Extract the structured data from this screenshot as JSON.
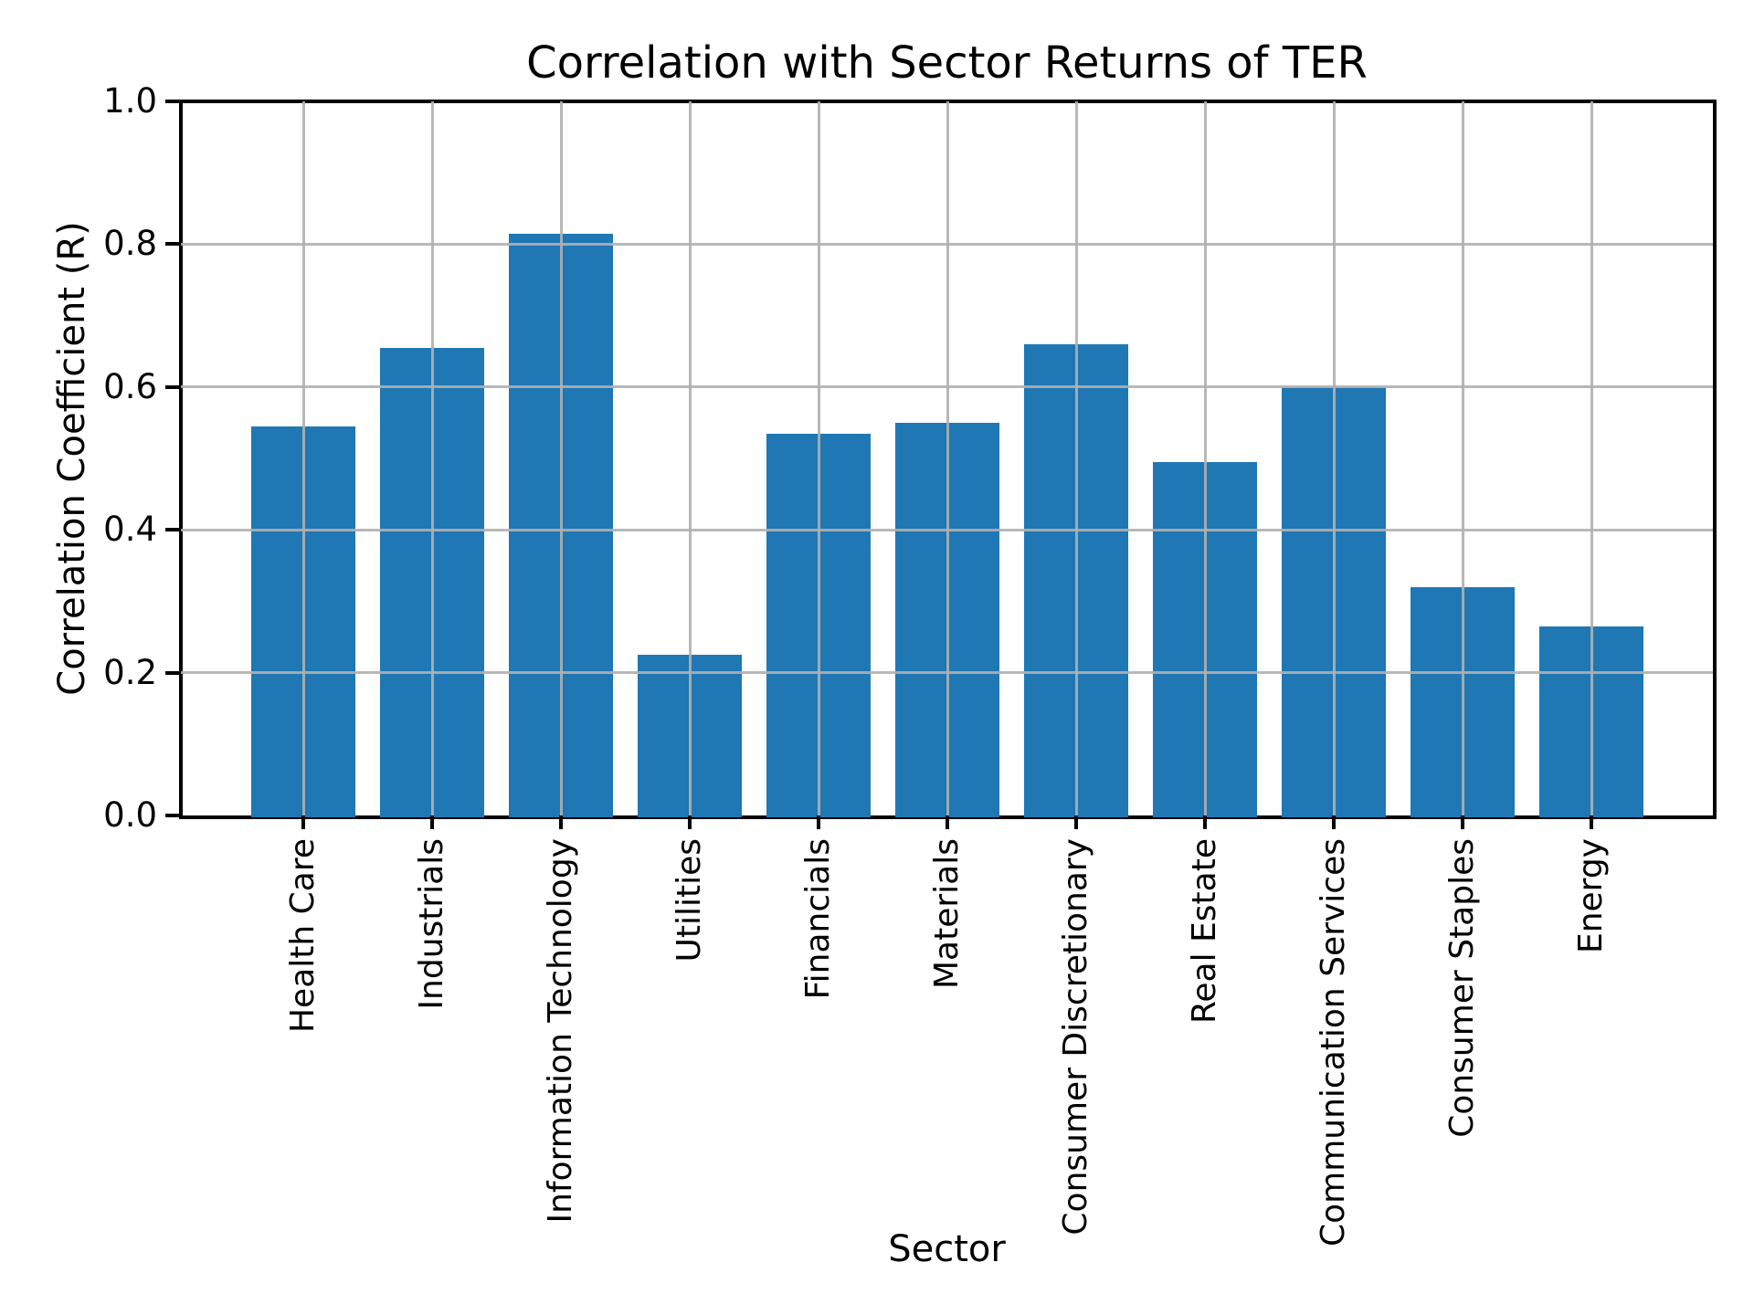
{
  "title": "Correlation with Sector Returns of TER",
  "chart_data": {
    "type": "bar",
    "title": "Correlation with Sector Returns of TER",
    "xlabel": "Sector",
    "ylabel": "Correlation Coefficient (R)",
    "categories": [
      "Health Care",
      "Industrials",
      "Information Technology",
      "Utilities",
      "Financials",
      "Materials",
      "Consumer Discretionary",
      "Real Estate",
      "Communication Services",
      "Consumer Staples",
      "Energy"
    ],
    "values": [
      0.545,
      0.655,
      0.815,
      0.225,
      0.535,
      0.55,
      0.66,
      0.495,
      0.6,
      0.32,
      0.265
    ],
    "ylim": [
      0.0,
      1.0
    ],
    "ytick_labels": [
      "0.0",
      "0.2",
      "0.4",
      "0.6",
      "0.8",
      "1.0"
    ],
    "grid": true,
    "grid_on_top": true,
    "legend": "none",
    "bar_color": "#1f77b4",
    "grid_color": "#b0b0b0",
    "spine_color": "#000000"
  }
}
